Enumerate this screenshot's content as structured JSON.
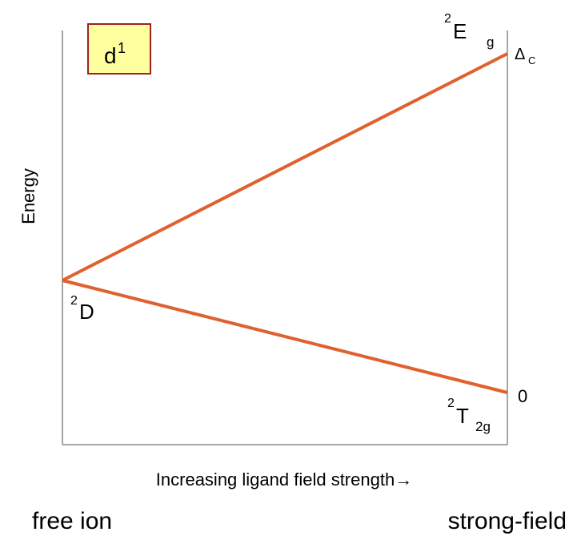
{
  "badge": {
    "base": "d",
    "sup": "1"
  },
  "y_axis_label": "Energy",
  "states": {
    "upper": {
      "sup": "2",
      "symbol": "E",
      "sub": "g"
    },
    "free_ion": {
      "sup": "2",
      "symbol": "D"
    },
    "lower": {
      "sup": "2",
      "symbol": "T",
      "sub": "2g"
    }
  },
  "energy_labels": {
    "upper": {
      "symbol": "Δ",
      "sub": "C"
    },
    "lower": "0"
  },
  "x_axis_label": "Increasing ligand field strength→",
  "bottom_labels": {
    "left": "free ion",
    "right": "strong-field"
  }
}
